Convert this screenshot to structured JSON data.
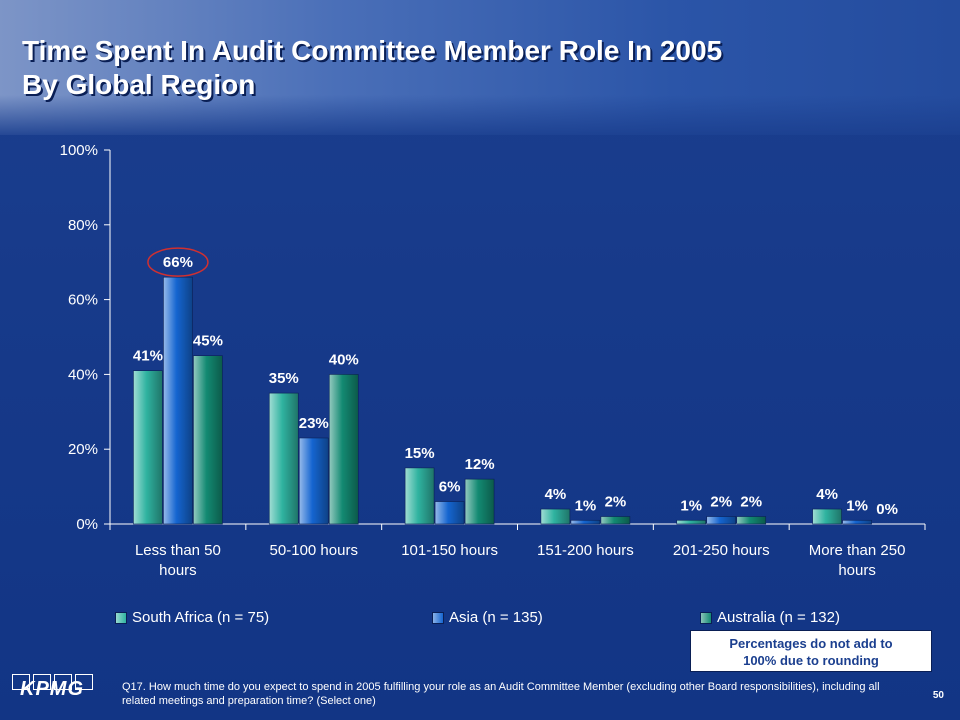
{
  "title": {
    "line1": "Time Spent In Audit Committee Member Role In 2005",
    "line2": "By Global Region"
  },
  "chart_data": {
    "type": "bar",
    "categories": [
      [
        "Less than 50",
        "hours"
      ],
      [
        "50-100 hours"
      ],
      [
        "101-150 hours"
      ],
      [
        "151-200 hours"
      ],
      [
        "201-250 hours"
      ],
      [
        "More than 250",
        "hours"
      ]
    ],
    "series": [
      {
        "name": "South Africa (n = 75)",
        "values": [
          41,
          35,
          15,
          4,
          1,
          4
        ],
        "labels": [
          "41%",
          "35%",
          "15%",
          "4%",
          "1%",
          "4%"
        ],
        "color": "#2fb3a0"
      },
      {
        "name": "Asia (n = 135)",
        "values": [
          66,
          23,
          6,
          1,
          2,
          1
        ],
        "labels": [
          "66%",
          "23%",
          "6%",
          "1%",
          "2%",
          "1%"
        ],
        "color": "#1565d0"
      },
      {
        "name": "Australia (n = 132)",
        "values": [
          45,
          40,
          12,
          2,
          2,
          0
        ],
        "labels": [
          "45%",
          "40%",
          "12%",
          "2%",
          "2%",
          "0%"
        ],
        "color": "#138a72"
      }
    ],
    "yticks": [
      "0%",
      "20%",
      "40%",
      "60%",
      "80%",
      "100%"
    ],
    "ylim": [
      0,
      100
    ],
    "highlight": {
      "series": 1,
      "category": 0,
      "color": "#d03030"
    },
    "axis_color": "#ffffff",
    "grid": false,
    "legend_position": "bottom"
  },
  "note": {
    "line1": "Percentages do not add to",
    "line2": "100% due to rounding"
  },
  "logo": "KPMG",
  "question": "Q17. How much time do you expect to spend in 2005 fulfilling your role as an Audit Committee Member (excluding other Board responsibilities), including all related meetings and preparation time? (Select one)",
  "page_number": "50"
}
